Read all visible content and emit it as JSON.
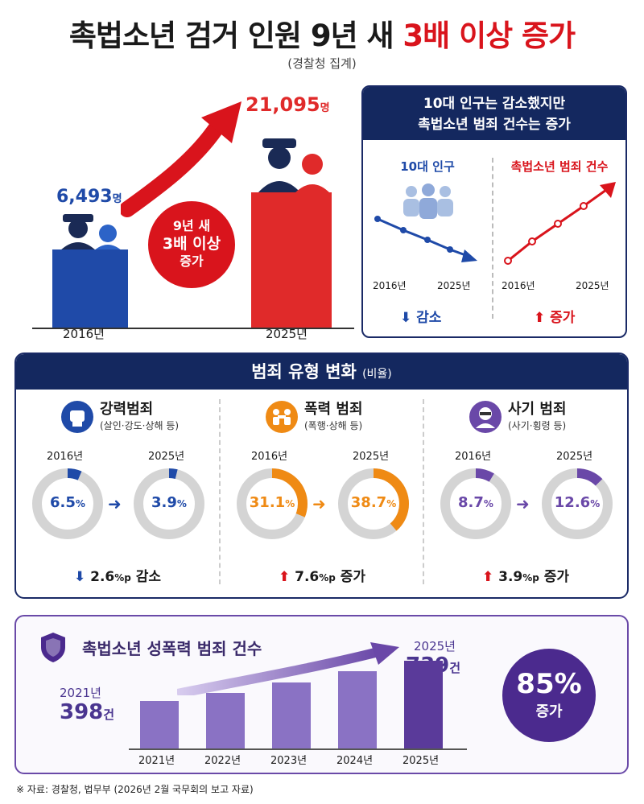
{
  "title": {
    "main": "촉법소년 검거 인원 9년 새",
    "highlight": "3배 이상 증가"
  },
  "subtitle": "(경찰청 집계)",
  "arrests": {
    "y2016": {
      "year": "2016년",
      "value": "6,493",
      "unit": "명"
    },
    "y2025": {
      "year": "2025년",
      "value": "21,095",
      "unit": "명"
    },
    "badge": [
      "9년 새",
      "3배 이상",
      "증가"
    ],
    "colors": {
      "y2016": "#1f4aa8",
      "y2025": "#e02a2a"
    }
  },
  "trend": {
    "header": [
      "10대 인구는 감소했지만",
      "촉법소년 범죄 건수는 증가"
    ],
    "left": {
      "title": "10대 인구",
      "start": "2016년",
      "end": "2025년",
      "result": "감소"
    },
    "right": {
      "title": "촉법소년 범죄 건수",
      "start": "2016년",
      "end": "2025년",
      "result": "증가"
    }
  },
  "crime_types": {
    "header": "범죄 유형 변화",
    "header_note": "(비율)",
    "categories": [
      {
        "name": "강력범죄",
        "sub": "(살인·강도·상해 등)",
        "y1": "2016년",
        "y2": "2025년",
        "v1": "6.5",
        "v2": "3.9",
        "v1_frac": 0.065,
        "v2_frac": 0.039,
        "change": "2.6",
        "change_unit": "%p",
        "change_word": "감소",
        "color": "#1f4aa8",
        "icon": "fist-icon"
      },
      {
        "name": "폭력 범죄",
        "sub": "(폭행·상해 등)",
        "y1": "2016년",
        "y2": "2025년",
        "v1": "31.1",
        "v2": "38.7",
        "v1_frac": 0.311,
        "v2_frac": 0.387,
        "change": "7.6",
        "change_unit": "%p",
        "change_word": "증가",
        "color": "#ef8a14",
        "icon": "fight-icon"
      },
      {
        "name": "사기 범죄",
        "sub": "(사기·횡령 등)",
        "y1": "2016년",
        "y2": "2025년",
        "v1": "8.7",
        "v2": "12.6",
        "v1_frac": 0.087,
        "v2_frac": 0.126,
        "change": "3.9",
        "change_unit": "%p",
        "change_word": "증가",
        "color": "#6a48a8",
        "icon": "masked-person-icon"
      }
    ],
    "pct_sign": "%"
  },
  "sexual_crime": {
    "title": "촉법소년 성폭력 범죄 건수",
    "years": [
      "2021년",
      "2022년",
      "2023년",
      "2024년",
      "2025년"
    ],
    "bar_values": [
      398,
      470,
      555,
      650,
      739
    ],
    "first_year": "2021년",
    "first_value": "398",
    "unit": "건",
    "last_year": "2025년",
    "last_value": "739",
    "increase_pct": "85%",
    "increase_word": "증가"
  },
  "footer": "※ 자료: 경찰청, 법무부 (2026년 2월 국무회의 보고 자료)"
}
